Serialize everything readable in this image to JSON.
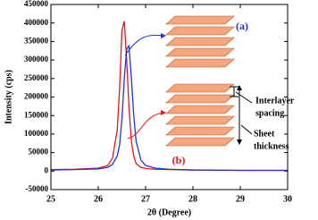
{
  "chart_data": {
    "type": "line",
    "xlabel": "2θ (Degree)",
    "ylabel": "Intensity (cps)",
    "x": [
      25,
      25.5,
      26,
      26.2,
      26.3,
      26.4,
      26.45,
      26.5,
      26.55,
      26.6,
      26.65,
      26.7,
      26.75,
      26.8,
      26.9,
      27,
      27.2,
      27.5,
      28,
      29,
      30
    ],
    "series": [
      {
        "name": "(b)",
        "color": "#e8141e",
        "values": [
          4000,
          5000,
          8000,
          15000,
          35000,
          110000,
          220000,
          380000,
          405000,
          300000,
          170000,
          80000,
          40000,
          20000,
          10000,
          7000,
          5000,
          4000,
          3000,
          2000,
          2000
        ]
      },
      {
        "name": "(a)",
        "color": "#2233cc",
        "values": [
          3000,
          4000,
          6000,
          10000,
          18000,
          40000,
          70000,
          140000,
          250000,
          330000,
          338000,
          250000,
          150000,
          80000,
          30000,
          15000,
          8000,
          5000,
          3000,
          2000,
          2000
        ]
      }
    ],
    "xlim": [
      25,
      30
    ],
    "xticks": [
      25,
      26,
      27,
      28,
      29,
      30
    ],
    "ylim": [
      -50000,
      450000
    ],
    "yticks": [
      -50000,
      0,
      50000,
      100000,
      150000,
      200000,
      250000,
      300000,
      350000,
      400000,
      450000
    ],
    "annotations": [
      "Interlayer",
      "spacing",
      "Sheet",
      "thickness"
    ]
  }
}
